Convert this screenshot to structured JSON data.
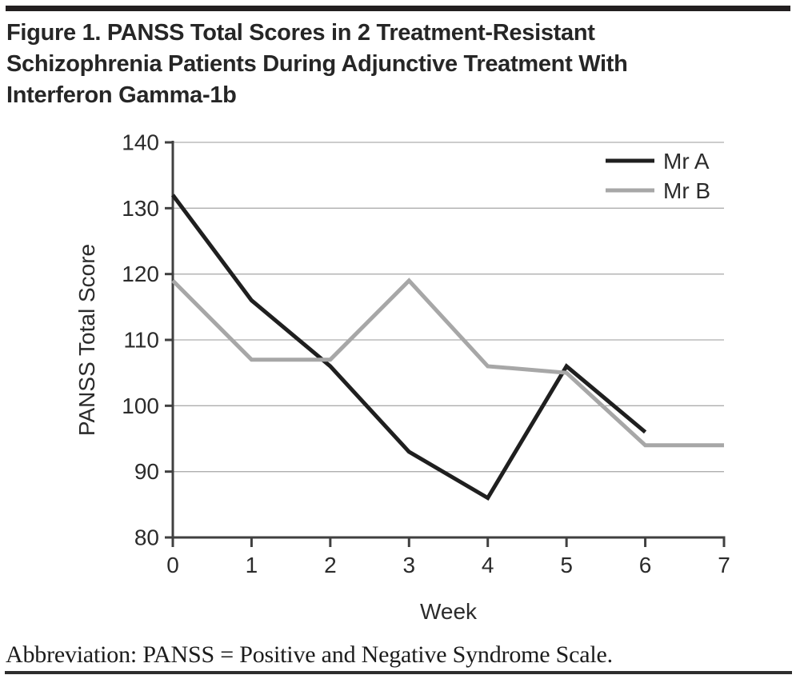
{
  "page": {
    "title_lines": [
      "Figure 1. PANSS Total Scores in 2 Treatment-Resistant",
      "Schizophrenia Patients During Adjunctive Treatment With",
      "Interferon Gamma-1b"
    ],
    "footnote": "Abbreviation: PANSS = Positive and Negative Syndrome Scale."
  },
  "chart_data": {
    "type": "line",
    "title": "",
    "xlabel": "Week",
    "ylabel": "PANSS Total Score",
    "xlim": [
      0,
      7
    ],
    "ylim": [
      80,
      140
    ],
    "xticks": [
      0,
      1,
      2,
      3,
      4,
      5,
      6,
      7
    ],
    "yticks": [
      80,
      90,
      100,
      110,
      120,
      130,
      140
    ],
    "grid": "horizontal",
    "legend_position": "top-right-inside",
    "series": [
      {
        "name": "Mr A",
        "color": "#1f1f1f",
        "x": [
          0,
          1,
          2,
          3,
          4,
          5,
          6
        ],
        "values": [
          132,
          116,
          106,
          93,
          86,
          106,
          96
        ]
      },
      {
        "name": "Mr B",
        "color": "#a7a7a7",
        "x": [
          0,
          1,
          2,
          3,
          4,
          5,
          6,
          7
        ],
        "values": [
          119,
          107,
          107,
          119,
          106,
          105,
          94,
          94
        ]
      }
    ]
  },
  "colors": {
    "rule_bar": "#231f20",
    "axis": "#404040",
    "gridline": "#aeaeae",
    "text": "#2b2b2b"
  }
}
